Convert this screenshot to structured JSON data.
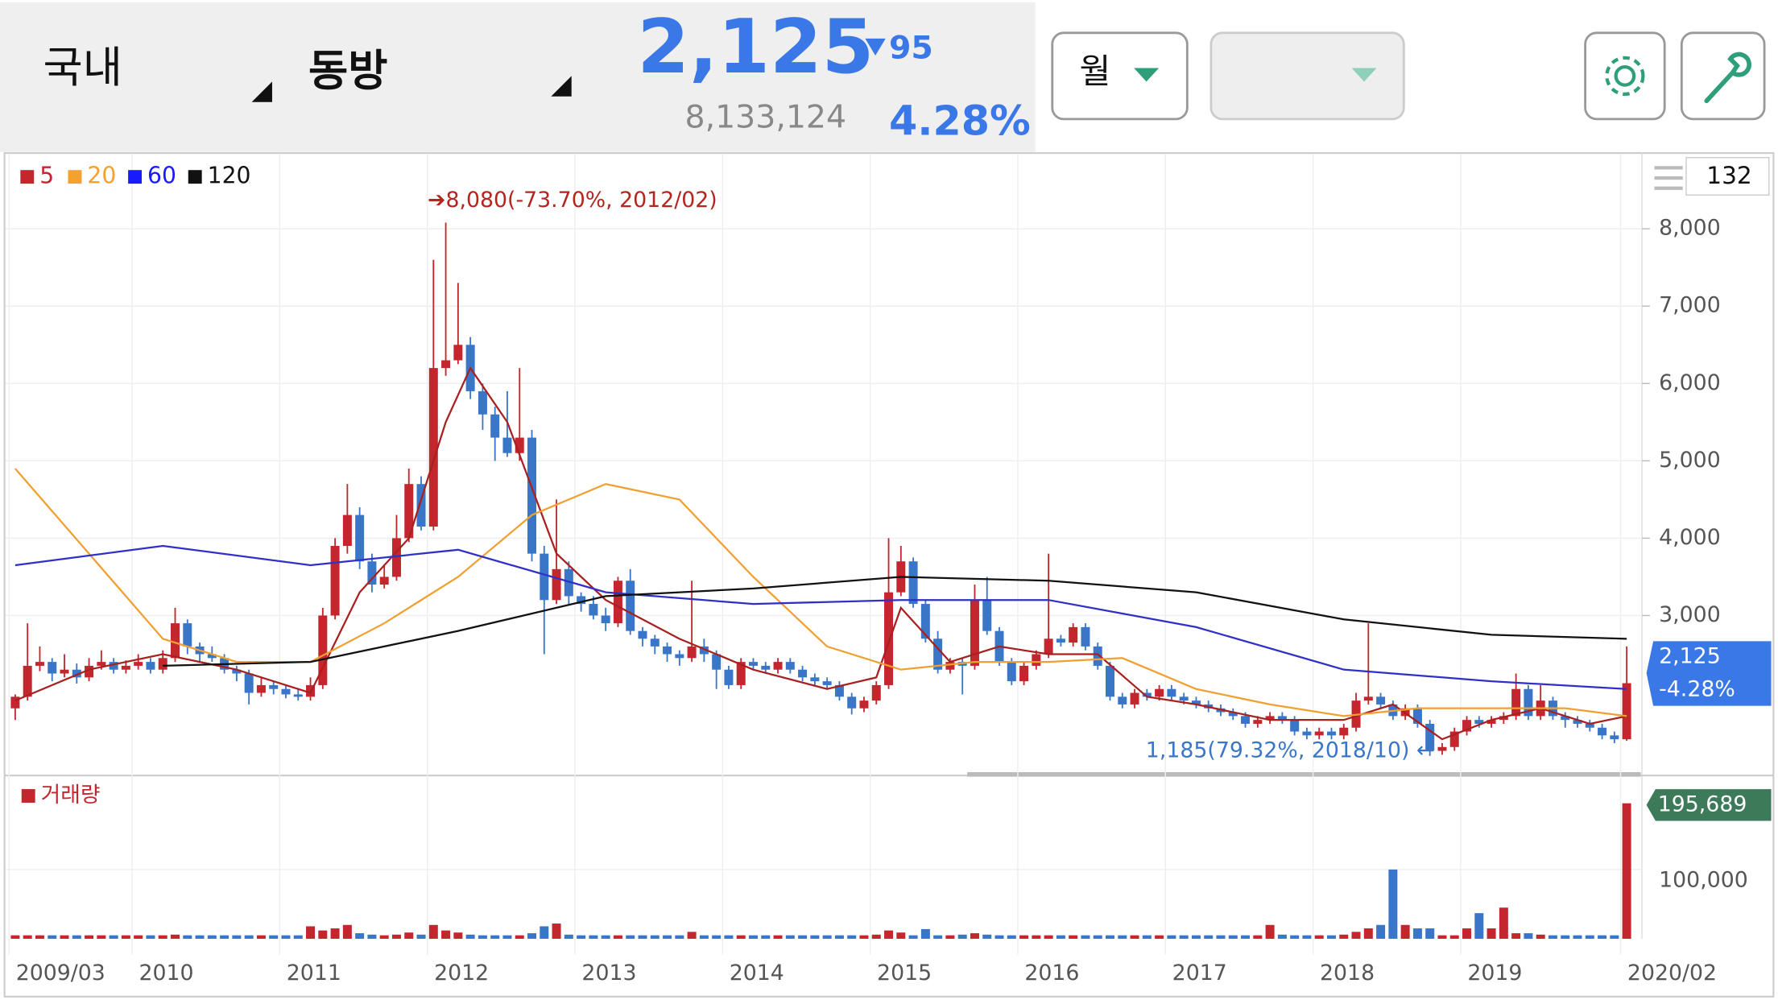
{
  "header": {
    "market": "국내",
    "stock": "동방",
    "price": "2,125",
    "change": "95",
    "volume": "8,133,124",
    "change_rate": "4.28%",
    "period": "월"
  },
  "chart_data": {
    "type": "candlestick",
    "count_label": "132",
    "up_color": "#c4262e",
    "down_color": "#3a76c8",
    "ylim": [
      990,
      8950
    ],
    "yticks": [
      {
        "value": 3000,
        "label": "3,000"
      },
      {
        "value": 4000,
        "label": "4,000"
      },
      {
        "value": 5000,
        "label": "5,000"
      },
      {
        "value": 6000,
        "label": "6,000"
      },
      {
        "value": 7000,
        "label": "7,000"
      },
      {
        "value": 8000,
        "label": "8,000"
      }
    ],
    "xlim": [
      0,
      132
    ],
    "xticks": [
      {
        "value": 0,
        "label": "2009/03"
      },
      {
        "value": 10,
        "label": "2010"
      },
      {
        "value": 22,
        "label": "2011"
      },
      {
        "value": 34,
        "label": "2012"
      },
      {
        "value": 46,
        "label": "2013"
      },
      {
        "value": 58,
        "label": "2014"
      },
      {
        "value": 70,
        "label": "2015"
      },
      {
        "value": 82,
        "label": "2016"
      },
      {
        "value": 94,
        "label": "2017"
      },
      {
        "value": 106,
        "label": "2018"
      },
      {
        "value": 118,
        "label": "2019"
      },
      {
        "value": 131,
        "label": "2020/02"
      }
    ],
    "candles": [
      [
        1800,
        1980,
        1650,
        1950
      ],
      [
        1950,
        2900,
        1900,
        2350
      ],
      [
        2350,
        2600,
        2280,
        2400
      ],
      [
        2400,
        2450,
        2150,
        2250
      ],
      [
        2250,
        2500,
        2200,
        2300
      ],
      [
        2300,
        2380,
        2120,
        2200
      ],
      [
        2200,
        2450,
        2150,
        2350
      ],
      [
        2350,
        2550,
        2300,
        2400
      ],
      [
        2400,
        2450,
        2250,
        2300
      ],
      [
        2300,
        2420,
        2250,
        2350
      ],
      [
        2350,
        2500,
        2300,
        2400
      ],
      [
        2400,
        2450,
        2250,
        2300
      ],
      [
        2300,
        2550,
        2250,
        2450
      ],
      [
        2450,
        3100,
        2400,
        2900
      ],
      [
        2900,
        2950,
        2500,
        2600
      ],
      [
        2600,
        2650,
        2400,
        2500
      ],
      [
        2500,
        2600,
        2400,
        2450
      ],
      [
        2450,
        2500,
        2250,
        2300
      ],
      [
        2300,
        2350,
        2150,
        2250
      ],
      [
        2250,
        2300,
        1850,
        2000
      ],
      [
        2000,
        2200,
        1950,
        2100
      ],
      [
        2100,
        2150,
        1980,
        2050
      ],
      [
        2050,
        2100,
        1930,
        1980
      ],
      [
        1980,
        2050,
        1900,
        1950
      ],
      [
        1950,
        2200,
        1900,
        2100
      ],
      [
        2100,
        3100,
        2050,
        3000
      ],
      [
        3000,
        4000,
        2950,
        3900
      ],
      [
        3900,
        4700,
        3800,
        4300
      ],
      [
        4300,
        4400,
        3600,
        3700
      ],
      [
        3700,
        3800,
        3300,
        3400
      ],
      [
        3400,
        3650,
        3350,
        3500
      ],
      [
        3500,
        4300,
        3450,
        4000
      ],
      [
        4000,
        4900,
        3950,
        4700
      ],
      [
        4700,
        4800,
        4100,
        4150
      ],
      [
        4150,
        7600,
        4100,
        6200
      ],
      [
        6200,
        8080,
        6100,
        6300
      ],
      [
        6300,
        7300,
        6250,
        6500
      ],
      [
        6500,
        6600,
        5800,
        5900
      ],
      [
        5900,
        6000,
        5400,
        5600
      ],
      [
        5600,
        5700,
        5000,
        5300
      ],
      [
        5300,
        5900,
        5050,
        5100
      ],
      [
        5100,
        6200,
        5000,
        5300
      ],
      [
        5300,
        5400,
        3700,
        3800
      ],
      [
        3800,
        3900,
        2500,
        3200
      ],
      [
        3200,
        4500,
        3150,
        3600
      ],
      [
        3600,
        3700,
        3150,
        3250
      ],
      [
        3250,
        3300,
        3050,
        3150
      ],
      [
        3150,
        3250,
        2950,
        3000
      ],
      [
        3000,
        3100,
        2800,
        2900
      ],
      [
        2900,
        3500,
        2850,
        3450
      ],
      [
        3450,
        3600,
        2750,
        2800
      ],
      [
        2800,
        2850,
        2600,
        2700
      ],
      [
        2700,
        2750,
        2500,
        2600
      ],
      [
        2600,
        2650,
        2400,
        2500
      ],
      [
        2500,
        2550,
        2350,
        2450
      ],
      [
        2450,
        3450,
        2400,
        2600
      ],
      [
        2600,
        2700,
        2400,
        2500
      ],
      [
        2500,
        2550,
        2050,
        2300
      ],
      [
        2300,
        2350,
        2050,
        2100
      ],
      [
        2100,
        2450,
        2050,
        2400
      ],
      [
        2400,
        2450,
        2300,
        2350
      ],
      [
        2350,
        2400,
        2250,
        2300
      ],
      [
        2300,
        2450,
        2250,
        2400
      ],
      [
        2400,
        2450,
        2250,
        2300
      ],
      [
        2300,
        2350,
        2150,
        2200
      ],
      [
        2200,
        2250,
        2100,
        2150
      ],
      [
        2150,
        2200,
        2050,
        2100
      ],
      [
        2100,
        2150,
        1900,
        1950
      ],
      [
        1950,
        2000,
        1720,
        1800
      ],
      [
        1800,
        1950,
        1750,
        1900
      ],
      [
        1900,
        2150,
        1850,
        2100
      ],
      [
        2100,
        4000,
        2050,
        3300
      ],
      [
        3300,
        3900,
        3250,
        3700
      ],
      [
        3700,
        3750,
        3100,
        3150
      ],
      [
        3150,
        3200,
        2650,
        2700
      ],
      [
        2700,
        2800,
        2250,
        2300
      ],
      [
        2300,
        2450,
        2250,
        2400
      ],
      [
        2400,
        2450,
        1980,
        2350
      ],
      [
        2350,
        3400,
        2300,
        3200
      ],
      [
        3200,
        3500,
        2750,
        2800
      ],
      [
        2800,
        2850,
        2350,
        2400
      ],
      [
        2400,
        2450,
        2100,
        2150
      ],
      [
        2150,
        2400,
        2100,
        2350
      ],
      [
        2350,
        2550,
        2300,
        2500
      ],
      [
        2500,
        3800,
        2450,
        2700
      ],
      [
        2700,
        2750,
        2600,
        2650
      ],
      [
        2650,
        2900,
        2600,
        2850
      ],
      [
        2850,
        2900,
        2550,
        2600
      ],
      [
        2600,
        2650,
        2300,
        2350
      ],
      [
        2350,
        2400,
        1900,
        1950
      ],
      [
        1950,
        2000,
        1800,
        1850
      ],
      [
        1850,
        2050,
        1800,
        2000
      ],
      [
        2000,
        2050,
        1900,
        1950
      ],
      [
        1950,
        2100,
        1900,
        2050
      ],
      [
        2050,
        2100,
        1900,
        1950
      ],
      [
        1950,
        2000,
        1850,
        1900
      ],
      [
        1900,
        1950,
        1800,
        1850
      ],
      [
        1850,
        1900,
        1750,
        1800
      ],
      [
        1800,
        1850,
        1700,
        1750
      ],
      [
        1750,
        1800,
        1650,
        1700
      ],
      [
        1700,
        1750,
        1550,
        1600
      ],
      [
        1600,
        1700,
        1550,
        1650
      ],
      [
        1650,
        1750,
        1600,
        1700
      ],
      [
        1700,
        1750,
        1600,
        1650
      ],
      [
        1650,
        1700,
        1450,
        1500
      ],
      [
        1500,
        1550,
        1400,
        1450
      ],
      [
        1450,
        1550,
        1400,
        1500
      ],
      [
        1500,
        1550,
        1400,
        1450
      ],
      [
        1450,
        1600,
        1400,
        1550
      ],
      [
        1550,
        2000,
        1500,
        1900
      ],
      [
        1900,
        2900,
        1850,
        1950
      ],
      [
        1950,
        2000,
        1800,
        1850
      ],
      [
        1850,
        1900,
        1650,
        1700
      ],
      [
        1700,
        1850,
        1650,
        1800
      ],
      [
        1800,
        1850,
        1550,
        1600
      ],
      [
        1600,
        1650,
        1185,
        1250
      ],
      [
        1250,
        1350,
        1200,
        1300
      ],
      [
        1300,
        1550,
        1250,
        1500
      ],
      [
        1500,
        1700,
        1450,
        1650
      ],
      [
        1650,
        1700,
        1550,
        1600
      ],
      [
        1600,
        1700,
        1550,
        1650
      ],
      [
        1650,
        1750,
        1600,
        1700
      ],
      [
        1700,
        2250,
        1650,
        2050
      ],
      [
        2050,
        2100,
        1650,
        1700
      ],
      [
        1700,
        2100,
        1650,
        1900
      ],
      [
        1900,
        1950,
        1650,
        1700
      ],
      [
        1700,
        1750,
        1550,
        1650
      ],
      [
        1650,
        1700,
        1550,
        1600
      ],
      [
        1600,
        1650,
        1500,
        1550
      ],
      [
        1550,
        1600,
        1400,
        1450
      ],
      [
        1450,
        1500,
        1350,
        1400
      ],
      [
        1400,
        2600,
        1380,
        2125
      ]
    ],
    "volume_label": "거래량",
    "volume_color": "#c4262e",
    "vlim": [
      0,
      226000
    ],
    "vticks": [
      {
        "value": 100000,
        "label": "100,000"
      }
    ],
    "volumes": [
      5000,
      5000,
      5000,
      5000,
      5000,
      5000,
      5000,
      5000,
      5000,
      5000,
      5000,
      5000,
      5000,
      6000,
      5000,
      5000,
      5000,
      5000,
      5000,
      5000,
      5000,
      5000,
      5000,
      5000,
      18000,
      12000,
      15000,
      20000,
      8000,
      6000,
      5000,
      6000,
      9000,
      6000,
      20000,
      12000,
      9000,
      6000,
      5000,
      5000,
      5000,
      5000,
      8000,
      18000,
      22000,
      6000,
      5000,
      5000,
      5000,
      5000,
      5000,
      5000,
      5000,
      5000,
      5000,
      10000,
      5000,
      5000,
      5000,
      5000,
      5000,
      5000,
      5000,
      5000,
      5000,
      5000,
      5000,
      5000,
      5000,
      5000,
      6000,
      12000,
      9000,
      5000,
      14000,
      5000,
      5000,
      6000,
      8000,
      6000,
      5000,
      5000,
      5000,
      5000,
      5000,
      5000,
      5000,
      5000,
      5000,
      5000,
      5000,
      5000,
      5000,
      5000,
      5000,
      5000,
      5000,
      5000,
      5000,
      5000,
      5000,
      5000,
      20000,
      6000,
      5000,
      5000,
      5000,
      5000,
      6000,
      10000,
      15000,
      20000,
      100000,
      20000,
      15000,
      15000,
      5000,
      5000,
      15000,
      37000,
      15000,
      45000,
      8000,
      8000,
      6000,
      5000,
      5000,
      5000,
      5000,
      5000,
      5000,
      195689
    ],
    "series": [
      {
        "name": "5",
        "color": "#c4262e",
        "line_color": "#a8201f",
        "x": [
          0,
          6,
          12,
          18,
          24,
          28,
          32,
          35,
          37,
          40,
          44,
          48,
          54,
          60,
          66,
          70,
          72,
          76,
          80,
          84,
          88,
          92,
          96,
          102,
          108,
          112,
          116,
          120,
          124,
          128,
          131
        ],
        "values": [
          1900,
          2300,
          2500,
          2300,
          2000,
          3300,
          4000,
          5500,
          6200,
          5500,
          3800,
          3200,
          2700,
          2300,
          2050,
          2200,
          3100,
          2400,
          2600,
          2500,
          2500,
          1950,
          1850,
          1650,
          1650,
          1850,
          1400,
          1650,
          1800,
          1600,
          1700
        ]
      },
      {
        "name": "20",
        "color": "#f5a12e",
        "line_color": "#f0a030",
        "x": [
          0,
          6,
          12,
          18,
          24,
          30,
          36,
          42,
          48,
          54,
          60,
          66,
          72,
          78,
          84,
          90,
          96,
          102,
          108,
          114,
          120,
          126,
          131
        ],
        "values": [
          4900,
          3800,
          2700,
          2400,
          2400,
          2900,
          3500,
          4300,
          4700,
          4500,
          3500,
          2600,
          2300,
          2400,
          2400,
          2450,
          2050,
          1850,
          1700,
          1800,
          1800,
          1800,
          1700
        ]
      },
      {
        "name": "60",
        "color": "#1a1aff",
        "line_color": "#3030c8",
        "x": [
          0,
          12,
          24,
          36,
          48,
          60,
          72,
          84,
          96,
          108,
          120,
          131
        ],
        "values": [
          3650,
          3900,
          3650,
          3850,
          3300,
          3150,
          3200,
          3200,
          2850,
          2300,
          2150,
          2050
        ]
      },
      {
        "name": "120",
        "color": "#111111",
        "line_color": "#111111",
        "x": [
          12,
          24,
          36,
          48,
          60,
          72,
          84,
          96,
          108,
          120,
          131
        ],
        "values": [
          2350,
          2400,
          2800,
          3250,
          3350,
          3500,
          3450,
          3300,
          2950,
          2750,
          2700
        ]
      }
    ],
    "max_annotation": "➔8,080(-73.70%, 2012/02)",
    "min_annotation": "1,185(79.32%, 2018/10)  ←",
    "last_price_label": "2,125",
    "last_change_label": "-4.28%",
    "last_volume_label": "195,689"
  }
}
